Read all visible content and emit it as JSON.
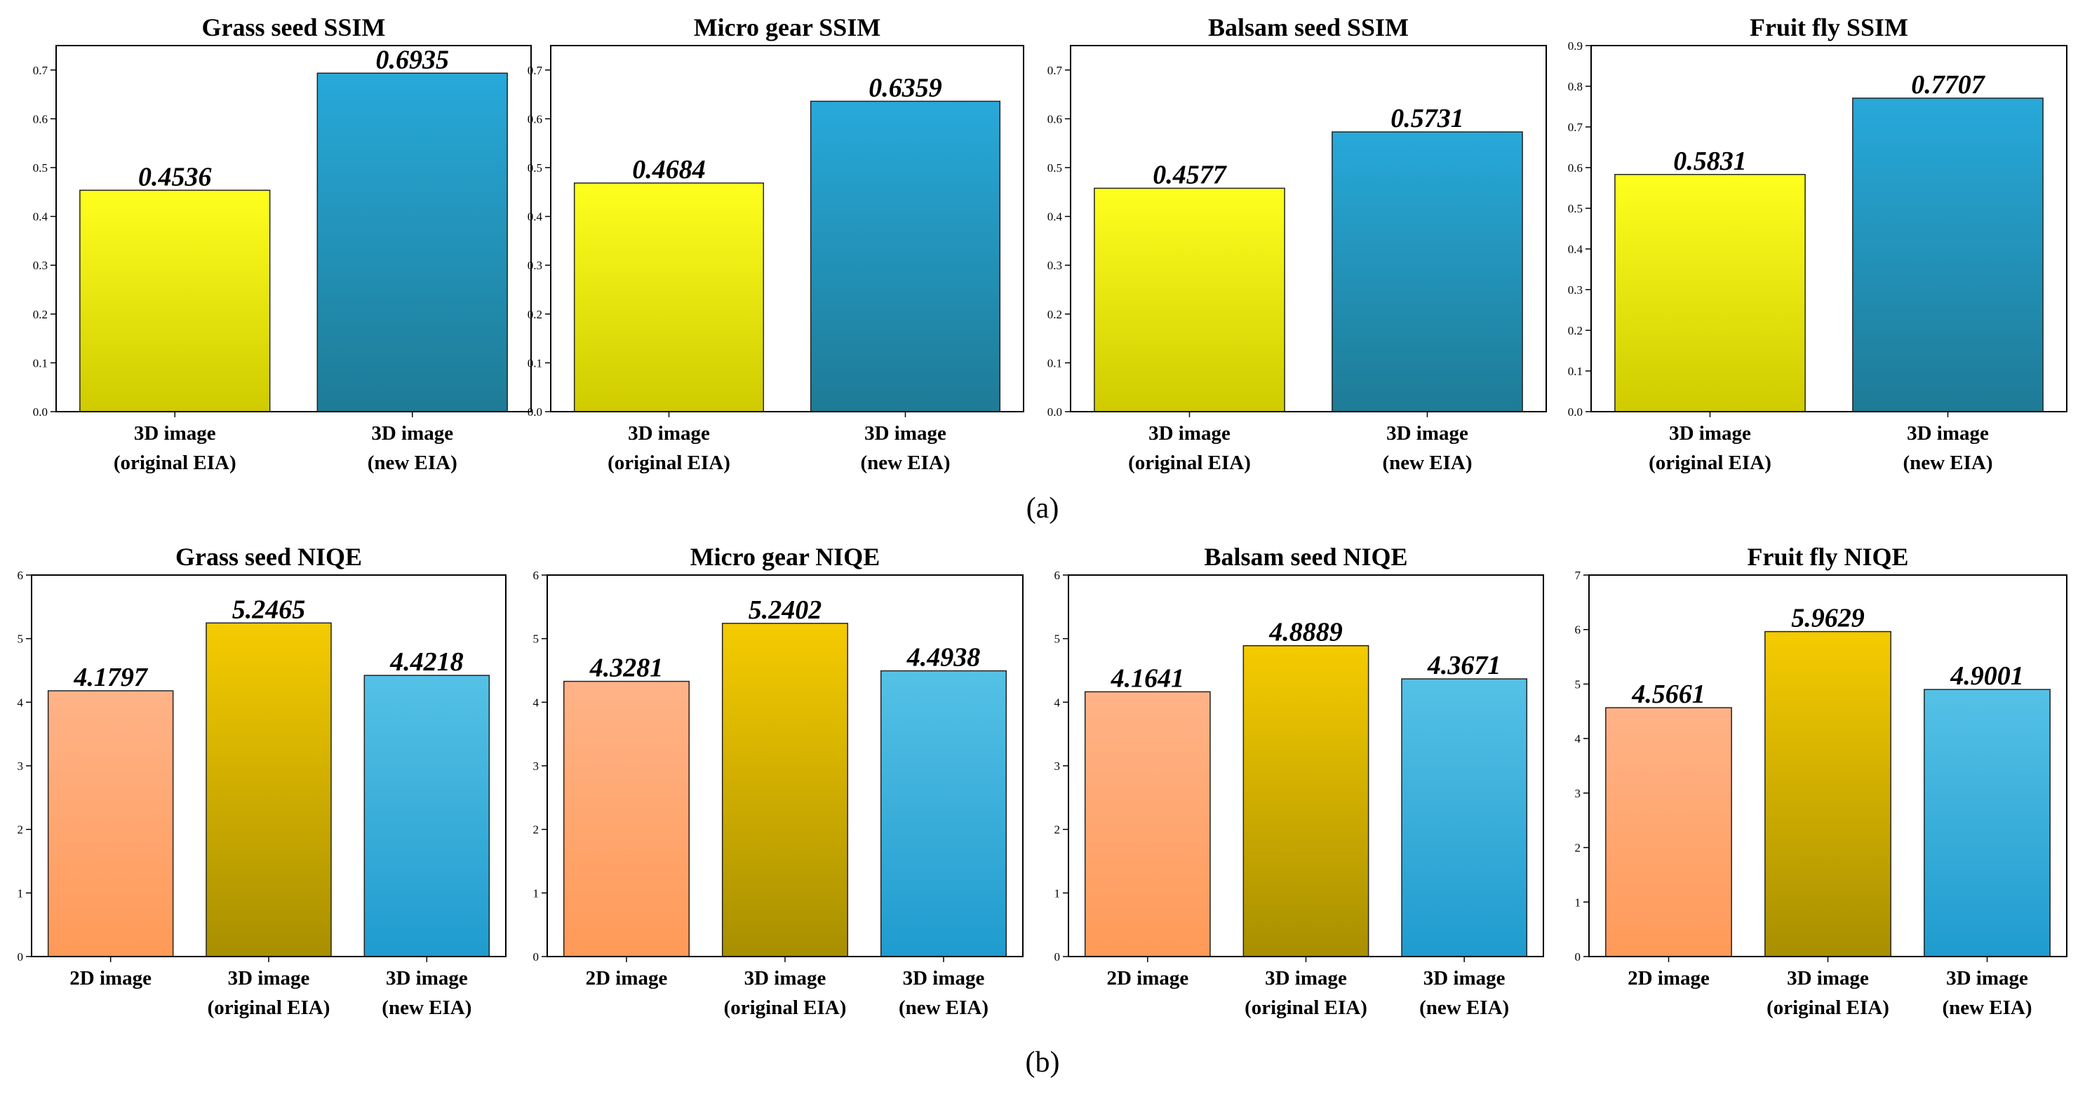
{
  "captions": {
    "a": "(a)",
    "b": "(b)"
  },
  "colors": {
    "yellow": [
      "#ffff1e",
      "#cfcb00"
    ],
    "blue_ssim": [
      "#27a9da",
      "#1e7b96"
    ],
    "orange": [
      "#ffb388",
      "#ff9a58"
    ],
    "gold": [
      "#f5cb00",
      "#a88f00"
    ],
    "blue_niqe": [
      "#55c1e6",
      "#1f9bce"
    ]
  },
  "chart_data": [
    {
      "type": "bar",
      "row": "a",
      "title": "Grass seed SSIM",
      "categories": [
        [
          "3D image",
          "(original EIA)"
        ],
        [
          "3D image",
          "(new EIA)"
        ]
      ],
      "values": [
        0.4536,
        0.6935
      ],
      "labels": [
        "0.4536",
        "0.6935"
      ],
      "ylim": [
        0,
        0.75
      ],
      "yticks": [
        "0.0",
        "0.1",
        "0.2",
        "0.3",
        "0.4",
        "0.5",
        "0.6",
        "0.7"
      ],
      "ytick_values": [
        0,
        0.1,
        0.2,
        0.3,
        0.4,
        0.5,
        0.6,
        0.7
      ],
      "fills": [
        "yellow",
        "blue_ssim"
      ]
    },
    {
      "type": "bar",
      "row": "a",
      "title": "Micro gear SSIM",
      "categories": [
        [
          "3D image",
          "(original EIA)"
        ],
        [
          "3D image",
          "(new EIA)"
        ]
      ],
      "values": [
        0.4684,
        0.6359
      ],
      "labels": [
        "0.4684",
        "0.6359"
      ],
      "ylim": [
        0,
        0.75
      ],
      "yticks": [
        "0.0",
        "0.1",
        "0.2",
        "0.3",
        "0.4",
        "0.5",
        "0.6",
        "0.7"
      ],
      "ytick_values": [
        0,
        0.1,
        0.2,
        0.3,
        0.4,
        0.5,
        0.6,
        0.7
      ],
      "fills": [
        "yellow",
        "blue_ssim"
      ]
    },
    {
      "type": "bar",
      "row": "a",
      "title": "Balsam seed SSIM",
      "categories": [
        [
          "3D image",
          "(original EIA)"
        ],
        [
          "3D image",
          "(new EIA)"
        ]
      ],
      "values": [
        0.4577,
        0.5731
      ],
      "labels": [
        "0.4577",
        "0.5731"
      ],
      "ylim": [
        0,
        0.75
      ],
      "yticks": [
        "0.0",
        "0.1",
        "0.2",
        "0.3",
        "0.4",
        "0.5",
        "0.6",
        "0.7"
      ],
      "ytick_values": [
        0,
        0.1,
        0.2,
        0.3,
        0.4,
        0.5,
        0.6,
        0.7
      ],
      "fills": [
        "yellow",
        "blue_ssim"
      ]
    },
    {
      "type": "bar",
      "row": "a",
      "title": "Fruit fly SSIM",
      "categories": [
        [
          "3D image",
          "(original EIA)"
        ],
        [
          "3D image",
          "(new EIA)"
        ]
      ],
      "values": [
        0.5831,
        0.7707
      ],
      "labels": [
        "0.5831",
        "0.7707"
      ],
      "ylim": [
        0,
        0.9
      ],
      "yticks": [
        "0.0",
        "0.1",
        "0.2",
        "0.3",
        "0.4",
        "0.5",
        "0.6",
        "0.7",
        "0.8",
        "0.9"
      ],
      "ytick_values": [
        0,
        0.1,
        0.2,
        0.3,
        0.4,
        0.5,
        0.6,
        0.7,
        0.8,
        0.9
      ],
      "fills": [
        "yellow",
        "blue_ssim"
      ]
    },
    {
      "type": "bar",
      "row": "b",
      "title": "Grass seed NIQE",
      "categories": [
        [
          "2D image"
        ],
        [
          "3D image",
          "(original EIA)"
        ],
        [
          "3D image",
          "(new EIA)"
        ]
      ],
      "values": [
        4.1797,
        5.2465,
        4.4218
      ],
      "labels": [
        "4.1797",
        "5.2465",
        "4.4218"
      ],
      "ylim": [
        0,
        6
      ],
      "yticks": [
        "0",
        "1",
        "2",
        "3",
        "4",
        "5",
        "6"
      ],
      "ytick_values": [
        0,
        1,
        2,
        3,
        4,
        5,
        6
      ],
      "fills": [
        "orange",
        "gold",
        "blue_niqe"
      ]
    },
    {
      "type": "bar",
      "row": "b",
      "title": "Micro gear NIQE",
      "categories": [
        [
          "2D image"
        ],
        [
          "3D image",
          "(original EIA)"
        ],
        [
          "3D image",
          "(new EIA)"
        ]
      ],
      "values": [
        4.3281,
        5.2402,
        4.4938
      ],
      "labels": [
        "4.3281",
        "5.2402",
        "4.4938"
      ],
      "ylim": [
        0,
        6
      ],
      "yticks": [
        "0",
        "1",
        "2",
        "3",
        "4",
        "5",
        "6"
      ],
      "ytick_values": [
        0,
        1,
        2,
        3,
        4,
        5,
        6
      ],
      "fills": [
        "orange",
        "gold",
        "blue_niqe"
      ]
    },
    {
      "type": "bar",
      "row": "b",
      "title": "Balsam seed NIQE",
      "categories": [
        [
          "2D image"
        ],
        [
          "3D image",
          "(original EIA)"
        ],
        [
          "3D image",
          "(new EIA)"
        ]
      ],
      "values": [
        4.1641,
        4.8889,
        4.3671
      ],
      "labels": [
        "4.1641",
        "4.8889",
        "4.3671"
      ],
      "ylim": [
        0,
        6
      ],
      "yticks": [
        "0",
        "1",
        "2",
        "3",
        "4",
        "5",
        "6"
      ],
      "ytick_values": [
        0,
        1,
        2,
        3,
        4,
        5,
        6
      ],
      "fills": [
        "orange",
        "gold",
        "blue_niqe"
      ]
    },
    {
      "type": "bar",
      "row": "b",
      "title": "Fruit fly NIQE",
      "categories": [
        [
          "2D image"
        ],
        [
          "3D image",
          "(original EIA)"
        ],
        [
          "3D image",
          "(new EIA)"
        ]
      ],
      "values": [
        4.5661,
        5.9629,
        4.9001
      ],
      "labels": [
        "4.5661",
        "5.9629",
        "4.9001"
      ],
      "ylim": [
        0,
        7
      ],
      "yticks": [
        "0",
        "1",
        "2",
        "3",
        "4",
        "5",
        "6",
        "7"
      ],
      "ytick_values": [
        0,
        1,
        2,
        3,
        4,
        5,
        6,
        7
      ],
      "fills": [
        "orange",
        "gold",
        "blue_niqe"
      ]
    }
  ]
}
